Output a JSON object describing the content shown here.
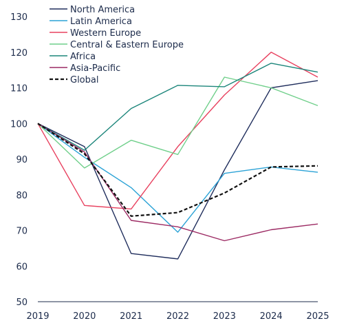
{
  "chart_data": {
    "type": "line",
    "x": [
      "2019",
      "2020",
      "2021",
      "2022",
      "2023",
      "2024",
      "2025"
    ],
    "ylim": [
      50,
      130
    ],
    "yticks": [
      50,
      60,
      70,
      80,
      90,
      100,
      110,
      120,
      130
    ],
    "grid": false,
    "legend_position": "top-left",
    "series": [
      {
        "name": "North America",
        "color": "#1f2d5c",
        "dashed": false,
        "values": [
          100,
          93.5,
          63.5,
          62,
          87,
          110,
          112
        ]
      },
      {
        "name": "Latin America",
        "color": "#2aa2d6",
        "dashed": false,
        "values": [
          100,
          90.5,
          82,
          69.5,
          86,
          87.8,
          86.3
        ]
      },
      {
        "name": "Western Europe",
        "color": "#e8415f",
        "dashed": false,
        "values": [
          100,
          77,
          76,
          93.5,
          108,
          120,
          113
        ]
      },
      {
        "name": "Central & Eastern Europe",
        "color": "#6fcf8a",
        "dashed": false,
        "values": [
          100,
          87.5,
          95.3,
          91.3,
          113,
          110,
          105
        ]
      },
      {
        "name": "Africa",
        "color": "#1b857a",
        "dashed": false,
        "values": [
          100,
          92.5,
          104.2,
          110.7,
          110.3,
          116.9,
          114.4
        ]
      },
      {
        "name": "Asia-Pacific",
        "color": "#9c2a63",
        "dashed": false,
        "values": [
          100,
          92,
          72.8,
          71,
          67.1,
          70.2,
          71.8
        ]
      },
      {
        "name": "Global",
        "color": "#111111",
        "dashed": true,
        "values": [
          100,
          91.5,
          74,
          75,
          80.5,
          87.8,
          88.1
        ]
      }
    ]
  }
}
